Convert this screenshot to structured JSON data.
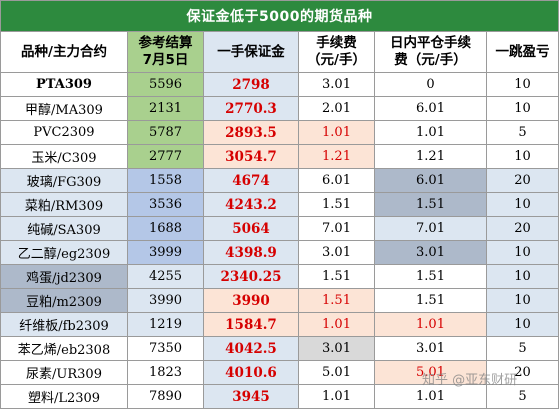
{
  "title": "保证金低于5000的期货品种",
  "headers": [
    "品种/主力合约",
    "参考结算\n7月5日",
    "一手保证金",
    "手续费\n（元/手）",
    "日内平仓手续\n费（元/手）",
    "一跳盈亏"
  ],
  "rows": [
    {
      "name": "PTA309",
      "price": "5596",
      "margin": "2798",
      "fee": "3.01",
      "intraday": "0",
      "tick": "10",
      "name_bold": true,
      "name_bg": "#ffffff",
      "price_bg": "#a9d08e",
      "margin_bg": "#dce6f1",
      "fee_color": "#000000",
      "fee_bg": "#ffffff",
      "intraday_color": "#000000",
      "intraday_bg": "#ffffff",
      "tick_bg": "#ffffff"
    },
    {
      "name": "甲醇/MA309",
      "price": "2131",
      "margin": "2770.3",
      "fee": "2.01",
      "intraday": "6.01",
      "tick": "10",
      "name_bold": false,
      "name_bg": "#ffffff",
      "price_bg": "#a9d08e",
      "margin_bg": "#dce6f1",
      "fee_color": "#000000",
      "fee_bg": "#ffffff",
      "intraday_color": "#000000",
      "intraday_bg": "#ffffff",
      "tick_bg": "#ffffff"
    },
    {
      "name": "PVC2309",
      "price": "5787",
      "margin": "2893.5",
      "fee": "1.01",
      "intraday": "1.01",
      "tick": "5",
      "name_bold": false,
      "name_bg": "#ffffff",
      "price_bg": "#a9d08e",
      "margin_bg": "#fce4d6",
      "fee_color": "#d60000",
      "fee_bg": "#fce4d6",
      "intraday_color": "#000000",
      "intraday_bg": "#ffffff",
      "tick_bg": "#ffffff"
    },
    {
      "name": "玉米/C309",
      "price": "2777",
      "margin": "3054.7",
      "fee": "1.21",
      "intraday": "1.21",
      "tick": "10",
      "name_bold": false,
      "name_bg": "#ffffff",
      "price_bg": "#a9d08e",
      "margin_bg": "#fce4d6",
      "fee_color": "#d60000",
      "fee_bg": "#fce4d6",
      "intraday_color": "#000000",
      "intraday_bg": "#ffffff",
      "tick_bg": "#ffffff"
    },
    {
      "name": "玻璃/FG309",
      "price": "1558",
      "margin": "4674",
      "fee": "6.01",
      "intraday": "6.01",
      "tick": "20",
      "name_bold": false,
      "name_bg": "#dce6f1",
      "price_bg": "#b4c7e7",
      "margin_bg": "#dce6f1",
      "fee_color": "#000000",
      "fee_bg": "#ffffff",
      "intraday_color": "#000000",
      "intraday_bg": "#adb9ca",
      "tick_bg": "#dce6f1"
    },
    {
      "name": "菜粕/RM309",
      "price": "3536",
      "margin": "4243.2",
      "fee": "1.51",
      "intraday": "1.51",
      "tick": "10",
      "name_bold": false,
      "name_bg": "#dce6f1",
      "price_bg": "#b4c7e7",
      "margin_bg": "#dce6f1",
      "fee_color": "#000000",
      "fee_bg": "#ffffff",
      "intraday_color": "#000000",
      "intraday_bg": "#adb9ca",
      "tick_bg": "#dce6f1"
    },
    {
      "name": "纯碱/SA309",
      "price": "1688",
      "margin": "5064",
      "fee": "7.01",
      "intraday": "7.01",
      "tick": "20",
      "name_bold": false,
      "name_bg": "#dce6f1",
      "price_bg": "#b4c7e7",
      "margin_bg": "#dce6f1",
      "fee_color": "#000000",
      "fee_bg": "#ffffff",
      "intraday_color": "#000000",
      "intraday_bg": "#dce6f1",
      "tick_bg": "#dce6f1"
    },
    {
      "name": "乙二醇/eg2309",
      "price": "3999",
      "margin": "4398.9",
      "fee": "3.01",
      "intraday": "3.01",
      "tick": "10",
      "name_bold": false,
      "name_bg": "#dce6f1",
      "price_bg": "#b4c7e7",
      "margin_bg": "#dce6f1",
      "fee_color": "#000000",
      "fee_bg": "#ffffff",
      "intraday_color": "#000000",
      "intraday_bg": "#adb9ca",
      "tick_bg": "#dce6f1"
    },
    {
      "name": "鸡蛋/jd2309",
      "price": "4255",
      "margin": "2340.25",
      "fee": "1.51",
      "intraday": "1.51",
      "tick": "10",
      "name_bold": false,
      "name_bg": "#adb9ca",
      "price_bg": "#dce6f1",
      "margin_bg": "#dce6f1",
      "fee_color": "#000000",
      "fee_bg": "#ffffff",
      "intraday_color": "#000000",
      "intraday_bg": "#ffffff",
      "tick_bg": "#dce6f1"
    },
    {
      "name": "豆粕/m2309",
      "price": "3990",
      "margin": "3990",
      "fee": "1.51",
      "intraday": "1.51",
      "tick": "10",
      "name_bold": false,
      "name_bg": "#adb9ca",
      "price_bg": "#dce6f1",
      "margin_bg": "#fce4d6",
      "fee_color": "#d60000",
      "fee_bg": "#fce4d6",
      "intraday_color": "#000000",
      "intraday_bg": "#ffffff",
      "tick_bg": "#dce6f1"
    },
    {
      "name": "纤维板/fb2309",
      "price": "1219",
      "margin": "1584.7",
      "fee": "1.01",
      "intraday": "1.01",
      "tick": "10",
      "name_bold": false,
      "name_bg": "#dce6f1",
      "price_bg": "#dce6f1",
      "margin_bg": "#fce4d6",
      "fee_color": "#d60000",
      "fee_bg": "#fce4d6",
      "intraday_color": "#d60000",
      "intraday_bg": "#fce4d6",
      "tick_bg": "#dce6f1"
    },
    {
      "name": "苯乙烯/eb2308",
      "price": "7350",
      "margin": "4042.5",
      "fee": "3.01",
      "intraday": "3.01",
      "tick": "5",
      "name_bold": false,
      "name_bg": "#ffffff",
      "price_bg": "#ffffff",
      "margin_bg": "#dce6f1",
      "fee_color": "#000000",
      "fee_bg": "#d9d9d9",
      "intraday_color": "#000000",
      "intraday_bg": "#ffffff",
      "tick_bg": "#ffffff"
    },
    {
      "name": "尿素/UR309",
      "price": "1823",
      "margin": "4010.6",
      "fee": "5.01",
      "intraday": "5.01",
      "tick": "20",
      "name_bold": false,
      "name_bg": "#ffffff",
      "price_bg": "#ffffff",
      "margin_bg": "#dce6f1",
      "fee_color": "#000000",
      "fee_bg": "#ffffff",
      "intraday_color": "#d60000",
      "intraday_bg": "#fce4d6",
      "tick_bg": "#ffffff"
    },
    {
      "name": "塑料/L2309",
      "price": "7890",
      "margin": "3945",
      "fee": "1.01",
      "intraday": "1.01",
      "tick": "5",
      "name_bold": false,
      "name_bg": "#ffffff",
      "price_bg": "#ffffff",
      "margin_bg": "#dce6f1",
      "fee_color": "#000000",
      "fee_bg": "#ffffff",
      "intraday_color": "#000000",
      "intraday_bg": "#ffffff",
      "tick_bg": "#ffffff"
    }
  ],
  "watermark": "知乎 @亚东财研",
  "colors": {
    "title_bg": "#2d8a3e",
    "title_text": "#ffffff",
    "margin_text": "#d60000"
  }
}
